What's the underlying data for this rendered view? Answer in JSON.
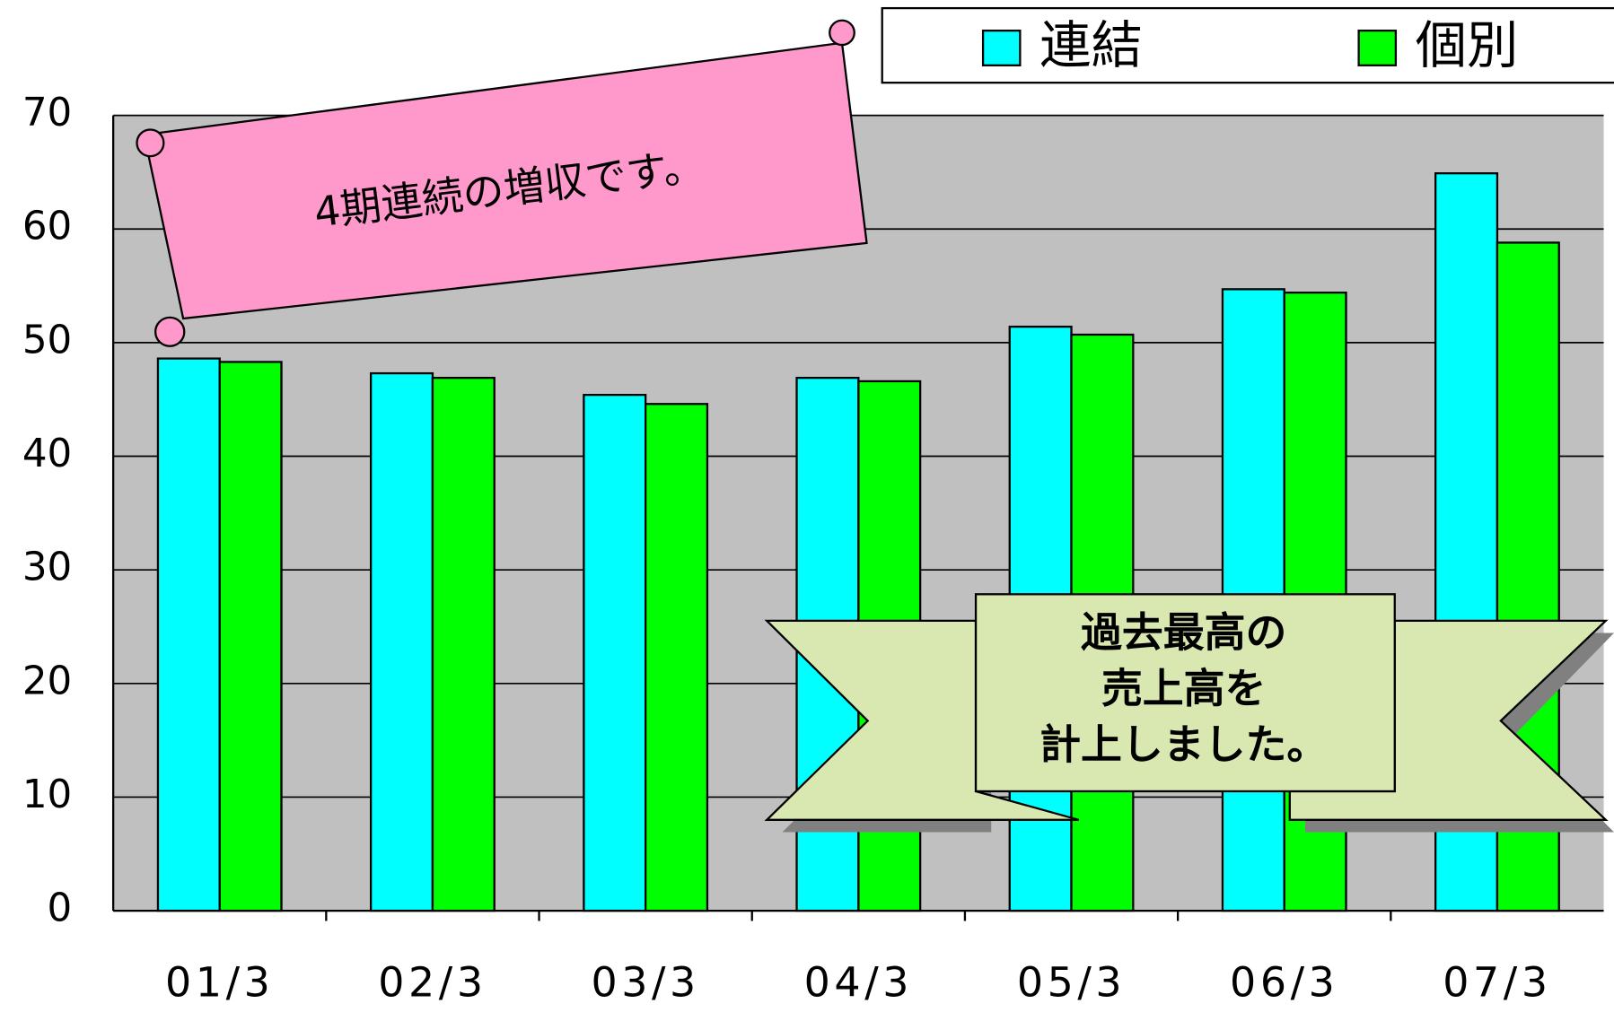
{
  "chart_data": {
    "type": "bar",
    "categories": [
      "01/3",
      "02/3",
      "03/3",
      "04/3",
      "05/3",
      "06/3",
      "07/3"
    ],
    "series": [
      {
        "name": "連結",
        "color": "#00ffff",
        "values": [
          48.6,
          47.3,
          45.4,
          46.9,
          51.4,
          54.7,
          64.9
        ]
      },
      {
        "name": "個別",
        "color": "#00ff00",
        "values": [
          48.3,
          46.9,
          44.6,
          46.6,
          50.7,
          54.4,
          58.8
        ]
      }
    ],
    "ylim": [
      0,
      70
    ],
    "yticks": [
      0,
      10,
      20,
      30,
      40,
      50,
      60,
      70
    ],
    "grid": true,
    "annotations": [
      "4期連続の増収です。",
      [
        "過去最高の",
        "売上高を",
        "計上しました。"
      ]
    ]
  }
}
